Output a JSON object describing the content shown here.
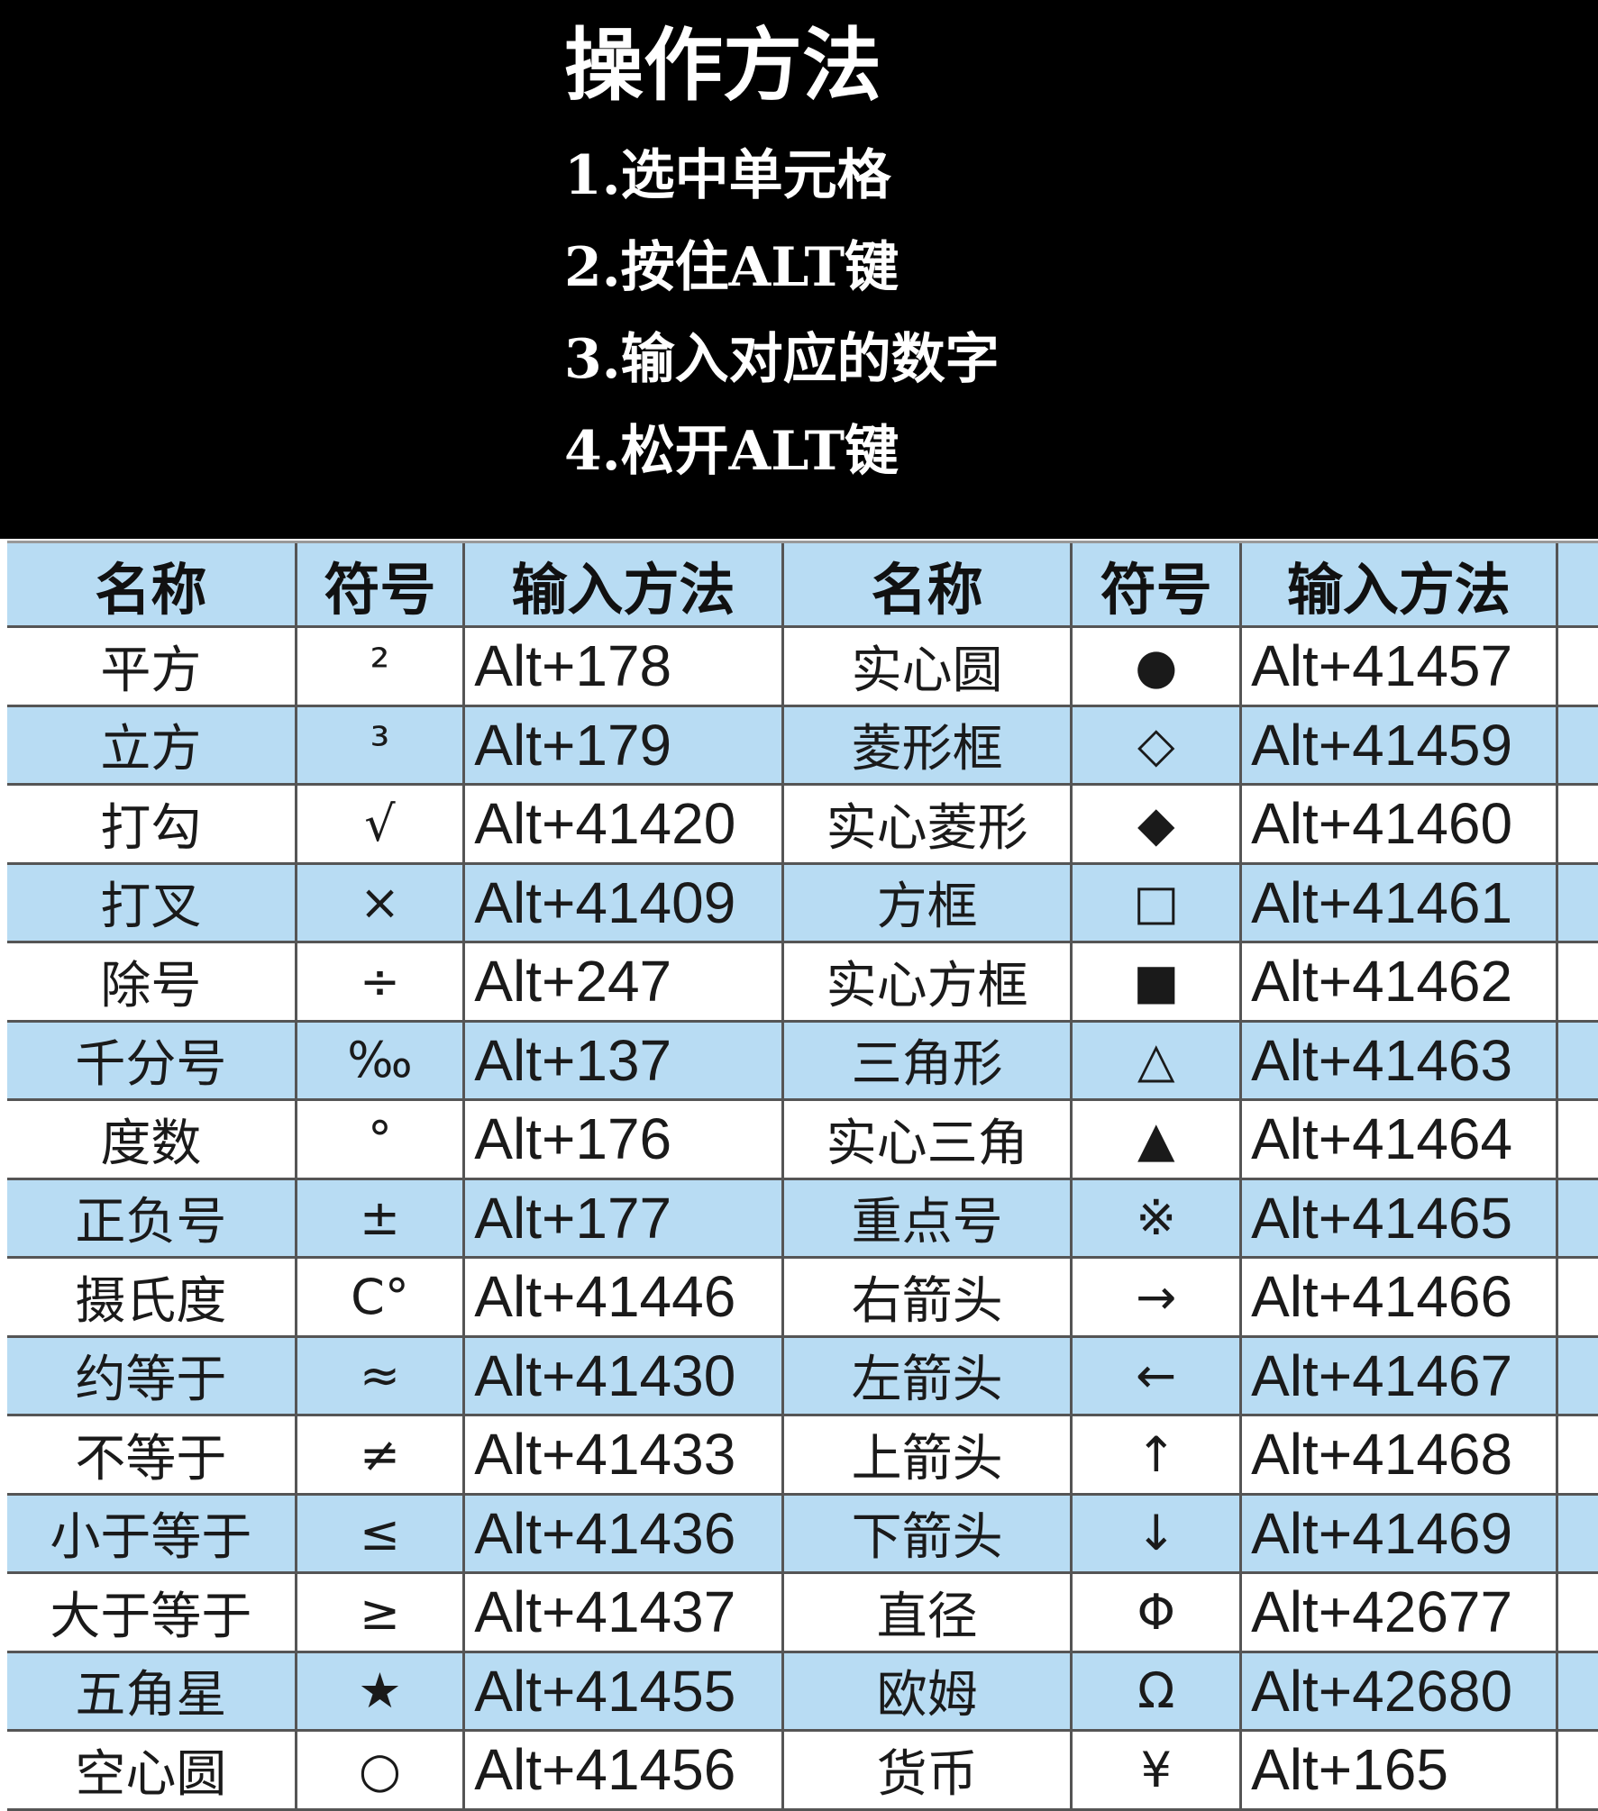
{
  "title": "操作方法",
  "steps": [
    "1.选中单元格",
    "2.按住ALT键",
    "3.输入对应的数字",
    "4.松开ALT键"
  ],
  "colors": {
    "header_bg": "#b8dcf3",
    "alt_row_bg": "#b8dcf3",
    "top_bg": "#000000"
  },
  "table": {
    "headers": [
      "名称",
      "符号",
      "输入方法",
      "名称",
      "符号",
      "输入方法"
    ],
    "rows": [
      [
        "平方",
        "²",
        "Alt+178",
        "实心圆",
        "●",
        "Alt+41457"
      ],
      [
        "立方",
        "³",
        "Alt+179",
        "菱形框",
        "◇",
        "Alt+41459"
      ],
      [
        "打勾",
        "√",
        "Alt+41420",
        "实心菱形",
        "◆",
        "Alt+41460"
      ],
      [
        "打叉",
        "×",
        "Alt+41409",
        "方框",
        "□",
        "Alt+41461"
      ],
      [
        "除号",
        "÷",
        "Alt+247",
        "实心方框",
        "■",
        "Alt+41462"
      ],
      [
        "千分号",
        "‰",
        "Alt+137",
        "三角形",
        "△",
        "Alt+41463"
      ],
      [
        "度数",
        "°",
        "Alt+176",
        "实心三角",
        "▲",
        "Alt+41464"
      ],
      [
        "正负号",
        "±",
        "Alt+177",
        "重点号",
        "※",
        "Alt+41465"
      ],
      [
        "摄氏度",
        "C°",
        "Alt+41446",
        "右箭头",
        "→",
        "Alt+41466"
      ],
      [
        "约等于",
        "≈",
        "Alt+41430",
        "左箭头",
        "←",
        "Alt+41467"
      ],
      [
        "不等于",
        "≠",
        "Alt+41433",
        "上箭头",
        "↑",
        "Alt+41468"
      ],
      [
        "小于等于",
        "≤",
        "Alt+41436",
        "下箭头",
        "↓",
        "Alt+41469"
      ],
      [
        "大于等于",
        "≥",
        "Alt+41437",
        "直径",
        "Φ",
        "Alt+42677"
      ],
      [
        "五角星",
        "★",
        "Alt+41455",
        "欧姆",
        "Ω",
        "Alt+42680"
      ],
      [
        "空心圆",
        "○",
        "Alt+41456",
        "货币",
        "¥",
        "Alt+165"
      ]
    ]
  }
}
